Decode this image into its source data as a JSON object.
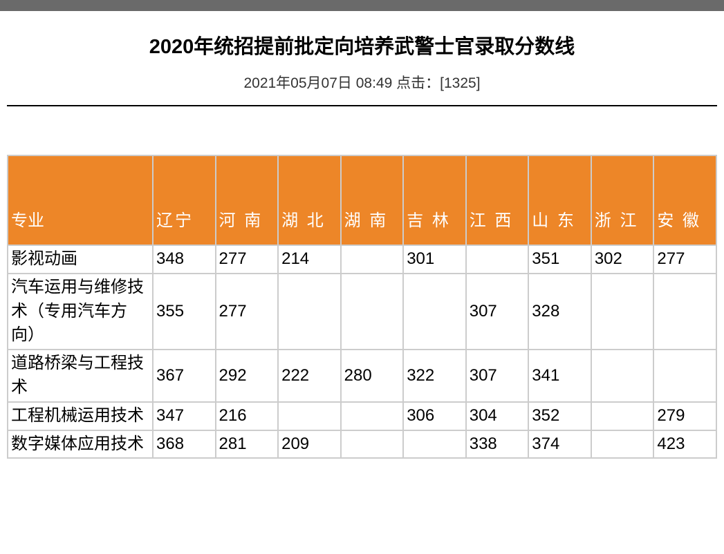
{
  "header": {
    "title": "2020年统招提前批定向培养武警士官录取分数线",
    "meta_prefix": "2021年05月07日 08:49  点击：[",
    "click_count": "1325",
    "meta_suffix": "]"
  },
  "table": {
    "columns": [
      "专业",
      "辽宁",
      "河 南",
      "湖 北",
      "湖 南",
      "吉 林",
      "江 西",
      "山 东",
      "浙 江",
      "安 徽"
    ],
    "rows": [
      {
        "major": "影视动画",
        "values": [
          "348",
          "277",
          "214",
          "",
          "301",
          "",
          "351",
          "302",
          "277"
        ]
      },
      {
        "major": "汽车运用与维修技术（专用汽车方向）",
        "values": [
          "355",
          "277",
          "",
          "",
          "",
          "307",
          "328",
          "",
          ""
        ]
      },
      {
        "major": "道路桥梁与工程技术",
        "values": [
          "367",
          "292",
          "222",
          "280",
          "322",
          "307",
          "341",
          "",
          ""
        ]
      },
      {
        "major": "工程机械运用技术",
        "values": [
          "347",
          "216",
          "",
          "",
          "306",
          "304",
          "352",
          "",
          "279"
        ]
      },
      {
        "major": "数字媒体应用技术",
        "values": [
          "368",
          "281",
          "209",
          "",
          "",
          "338",
          "374",
          "",
          "423"
        ]
      }
    ],
    "header_bg_color": "#ed8628",
    "header_text_color": "#ffffff",
    "border_color": "#cccccc",
    "cell_text_color": "#000000",
    "font_size": 24,
    "first_col_width": 210
  }
}
